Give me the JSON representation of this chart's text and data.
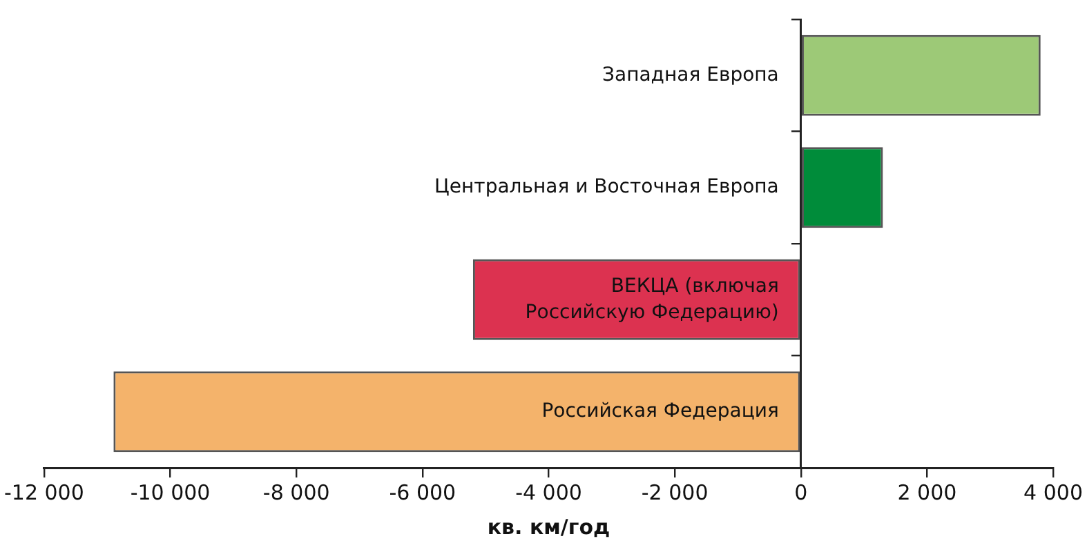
{
  "chart_data": {
    "type": "bar",
    "orientation": "horizontal",
    "xlabel": "кв. км/год",
    "categories": [
      "Западная Европа",
      "Центральная и Восточная Европа",
      "ВЕКЦА (включая Российскую Федерацию)",
      "Российская Федерация"
    ],
    "values": [
      3800,
      1300,
      -5200,
      -10900
    ],
    "colors": [
      "#9dc977",
      "#008c3a",
      "#dc3250",
      "#f4b36b"
    ],
    "xlim": [
      -12000,
      4000
    ],
    "xticks": [
      {
        "value": -12000,
        "label": "-12 000"
      },
      {
        "value": -10000,
        "label": "-10 000"
      },
      {
        "value": -8000,
        "label": "-8 000"
      },
      {
        "value": -6000,
        "label": "-6 000"
      },
      {
        "value": -4000,
        "label": "-4 000"
      },
      {
        "value": -2000,
        "label": "-2 000"
      },
      0,
      {
        "value": 2000,
        "label": "2 000"
      },
      {
        "value": 4000,
        "label": "4 000"
      }
    ],
    "grid": false,
    "legend": false
  }
}
